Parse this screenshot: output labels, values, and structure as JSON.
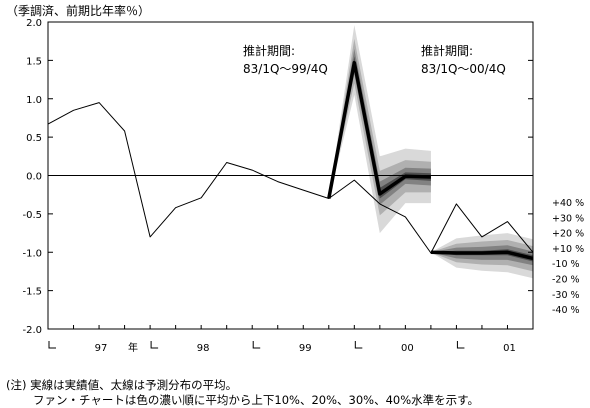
{
  "chart_data": {
    "type": "line",
    "unit_label": "（季調済、前期比年率％）",
    "ylim": [
      -2.0,
      2.0
    ],
    "y_ticks": [
      "2.0",
      "1.5",
      "1.0",
      "0.5",
      "0.0",
      "-0.5",
      "-1.0",
      "-1.5",
      "-2.0"
    ],
    "x_range": [
      0,
      19
    ],
    "x_year_labels": [
      {
        "label": "97",
        "at": 2.0
      },
      {
        "label": "年",
        "at": 3.25
      },
      {
        "label": "98",
        "at": 6.0
      },
      {
        "label": "99",
        "at": 10.0
      },
      {
        "label": "00",
        "at": 14.0
      },
      {
        "label": "01",
        "at": 18.0
      }
    ],
    "x_tick_marks": [
      0,
      4,
      8,
      12,
      16
    ],
    "series": [
      {
        "role": "actual-thin",
        "x": [
          0,
          1,
          2,
          3,
          4,
          5,
          6,
          7,
          8,
          9,
          10,
          11,
          12,
          13,
          14,
          15,
          16,
          17,
          18,
          19
        ],
        "y": [
          0.67,
          0.85,
          0.95,
          0.58,
          -0.8,
          -0.42,
          -0.29,
          0.17,
          0.07,
          -0.08,
          -0.19,
          -0.3,
          -0.06,
          -0.37,
          -0.54,
          -1.01,
          -0.37,
          -0.8,
          -0.6,
          -1.0
        ]
      },
      {
        "role": "forecast-mean-1",
        "x": [
          11,
          12,
          13,
          14,
          15
        ],
        "y": [
          -0.3,
          1.47,
          -0.24,
          -0.01,
          -0.02
        ]
      },
      {
        "role": "forecast-mean-2",
        "x": [
          15,
          16,
          17,
          18,
          19
        ],
        "y": [
          -1.0,
          -1.01,
          -1.01,
          -1.0,
          -1.08
        ]
      }
    ],
    "fans": [
      {
        "x": [
          11,
          12,
          13,
          14,
          15
        ],
        "mean": [
          -0.3,
          1.47,
          -0.24,
          -0.01,
          -0.02
        ],
        "bands": [
          {
            "level": 10,
            "lo": [
              -0.3,
              1.42,
              -0.3,
              -0.05,
              -0.07
            ],
            "hi": [
              -0.3,
              1.55,
              -0.16,
              0.04,
              0.03
            ]
          },
          {
            "level": 20,
            "lo": [
              -0.3,
              1.32,
              -0.38,
              -0.11,
              -0.13
            ],
            "hi": [
              -0.3,
              1.65,
              -0.08,
              0.1,
              0.09
            ]
          },
          {
            "level": 30,
            "lo": [
              -0.3,
              1.2,
              -0.52,
              -0.22,
              -0.22
            ],
            "hi": [
              -0.3,
              1.78,
              0.06,
              0.2,
              0.18
            ]
          },
          {
            "level": 40,
            "lo": [
              -0.3,
              1.05,
              -0.75,
              -0.36,
              -0.36
            ],
            "hi": [
              -0.3,
              1.96,
              0.25,
              0.35,
              0.32
            ]
          }
        ]
      },
      {
        "x": [
          15,
          16,
          17,
          18,
          19
        ],
        "mean": [
          -1.0,
          -1.01,
          -1.01,
          -1.0,
          -1.08
        ],
        "bands": [
          {
            "level": 10,
            "lo": [
              -1.0,
              -1.04,
              -1.04,
              -1.04,
              -1.12
            ],
            "hi": [
              -1.0,
              -0.98,
              -0.98,
              -0.96,
              -1.04
            ]
          },
          {
            "level": 20,
            "lo": [
              -1.0,
              -1.08,
              -1.1,
              -1.1,
              -1.17
            ],
            "hi": [
              -1.0,
              -0.94,
              -0.93,
              -0.91,
              -0.99
            ]
          },
          {
            "level": 30,
            "lo": [
              -1.0,
              -1.13,
              -1.16,
              -1.17,
              -1.25
            ],
            "hi": [
              -1.0,
              -0.89,
              -0.86,
              -0.84,
              -0.92
            ]
          },
          {
            "level": 40,
            "lo": [
              -1.0,
              -1.2,
              -1.24,
              -1.26,
              -1.34
            ],
            "hi": [
              -1.0,
              -0.82,
              -0.78,
              -0.75,
              -0.83
            ]
          }
        ]
      }
    ],
    "annotations": [
      {
        "line1": "推計期間:",
        "line2": "83/1Q～99/4Q"
      },
      {
        "line1": "推計期間:",
        "line2": "83/1Q～00/4Q"
      }
    ],
    "band_legend": [
      "+40 %",
      "+30 %",
      "+20 %",
      "+10 %",
      "-10 %",
      "-20 %",
      "-30 %",
      "-40 %"
    ],
    "band_colors": [
      "#d9d9d9",
      "#b0b0b0",
      "#828282",
      "#4e4e4e"
    ],
    "grid": false,
    "legend": "right"
  },
  "notes": {
    "line1": "(注) 実線は実績値、太線は予測分布の平均。",
    "line2": "ファン・チャートは色の濃い順に平均から上下10%、20%、30%、40%水準を示す。"
  }
}
